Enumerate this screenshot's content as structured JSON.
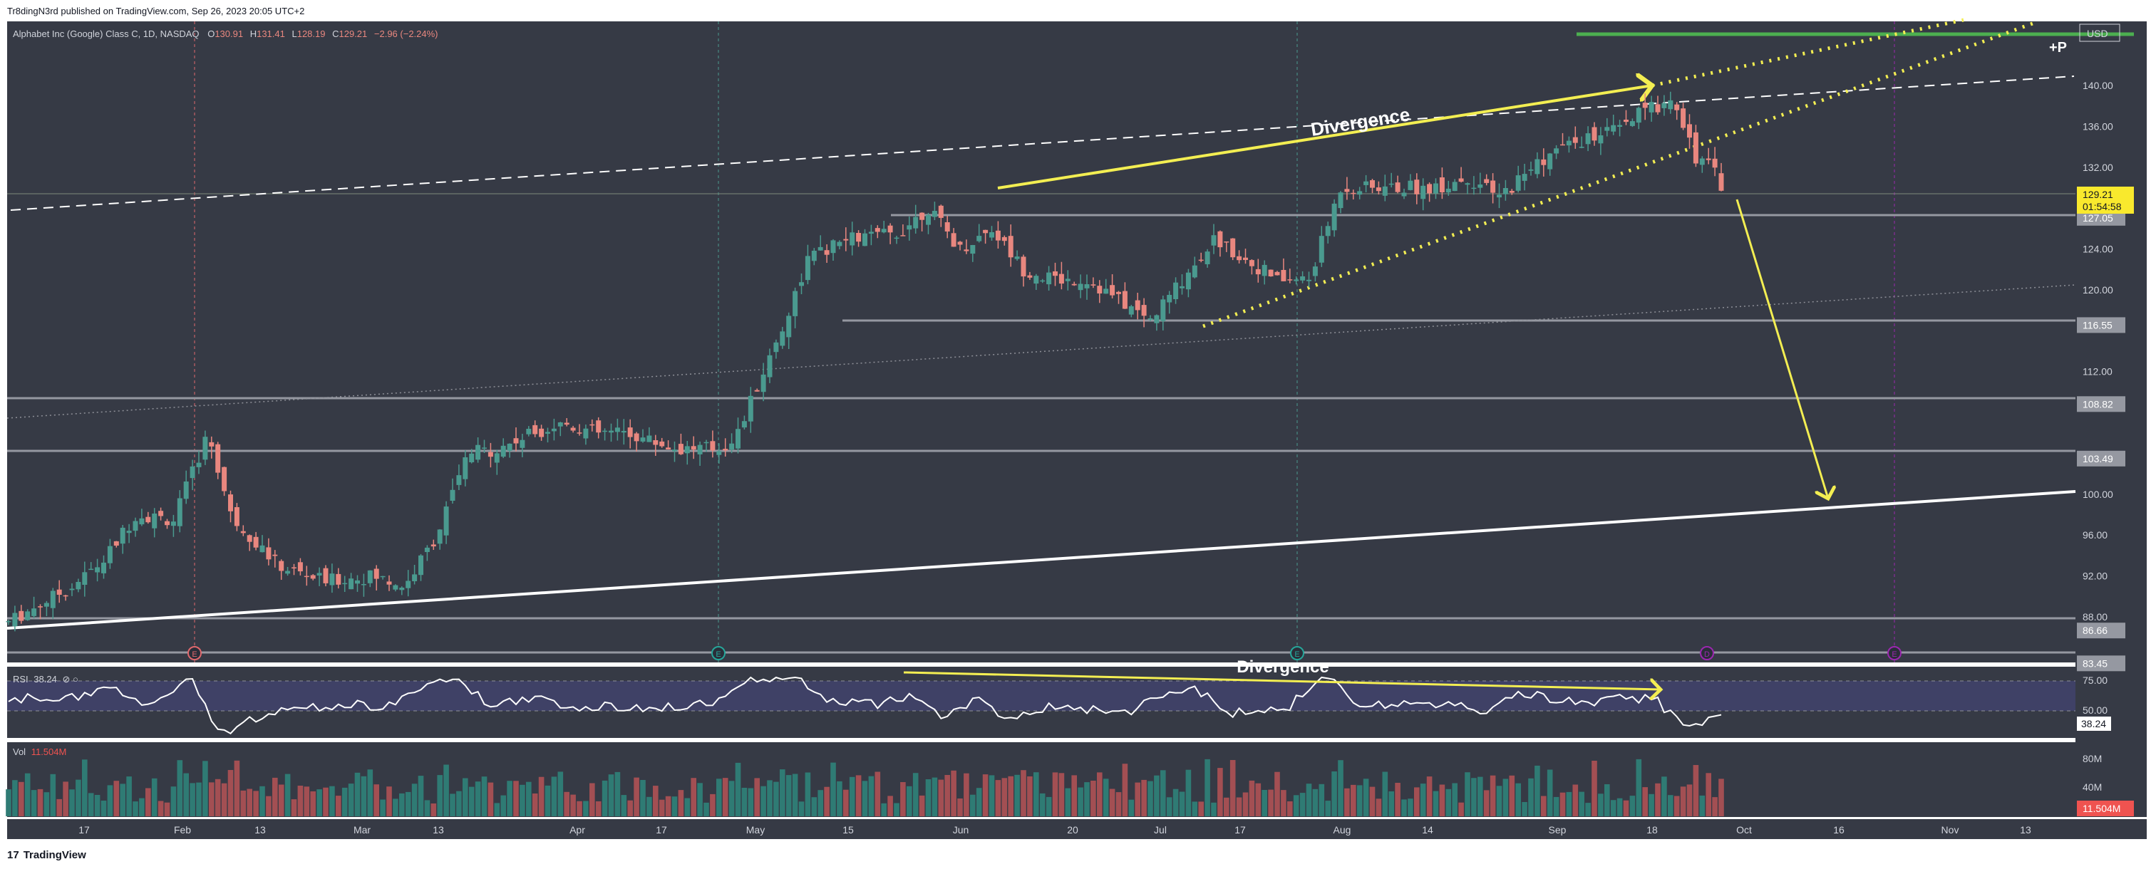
{
  "header": {
    "publish_line": "Tr8dingN3rd published on TradingView.com, Sep 26, 2023 20:05 UTC+2"
  },
  "footer": {
    "brand": "TradingView",
    "logo_glyph": "17"
  },
  "colors": {
    "pane_bg": "#363a45",
    "up": "#4a9a8f",
    "down": "#e9877f",
    "annotation_yellow": "#f3ee52",
    "green_line": "#4caf50",
    "price_label_bg": "#f9e92d",
    "vol_label_bg": "#ef5350"
  },
  "legend": {
    "symbol": "Alphabet Inc (Google) Class C, 1D, NASDAQ",
    "o_label": "O",
    "o_value": "130.91",
    "h_label": "H",
    "h_value": "131.41",
    "l_label": "L",
    "l_value": "128.19",
    "c_label": "C",
    "c_value": "129.21",
    "change": "−2.96 (−2.24%)"
  },
  "chart_data": {
    "type": "candlestick",
    "currency": "USD",
    "y_ticks": [
      "140.00",
      "136.00",
      "132.00",
      "124.00",
      "120.00",
      "112.00",
      "100.00",
      "96.00",
      "92.00",
      "88.00"
    ],
    "level_labels": [
      {
        "value": 127.05,
        "label": "127.05"
      },
      {
        "value": 116.55,
        "label": "116.55"
      },
      {
        "value": 108.82,
        "label": "108.82"
      },
      {
        "value": 103.49,
        "label": "103.49"
      },
      {
        "value": 86.66,
        "label": "86.66"
      },
      {
        "value": 83.45,
        "label": "83.45"
      }
    ],
    "last_price": {
      "label": "129.21",
      "countdown": "01:54:58"
    },
    "x_ticks": [
      "17",
      "Feb",
      "13",
      "Mar",
      "13",
      "Apr",
      "17",
      "May",
      "15",
      "Jun",
      "20",
      "Jul",
      "17",
      "Aug",
      "14",
      "Sep",
      "18",
      "Oct",
      "16",
      "Nov",
      "13"
    ],
    "annotations": {
      "divergence_main": "Divergence",
      "divergence_rsi": "Divergence",
      "plus_p": "+P"
    },
    "rsi": {
      "title": "RSI",
      "value": "38.24",
      "settings_glyphs": "⊘ ○",
      "levels": [
        "75.00",
        "50.00"
      ]
    },
    "volume": {
      "title": "Vol",
      "value": "11.504M",
      "ticks": [
        "80M",
        "40M"
      ]
    },
    "event_markers": [
      "E",
      "E",
      "E",
      "D",
      "E"
    ]
  }
}
